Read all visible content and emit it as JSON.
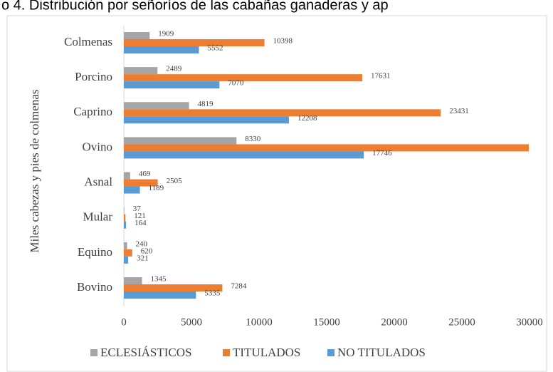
{
  "chart_data": {
    "type": "hbar",
    "title": "o 4. Distribución por señoríos de las cabañas ganaderas y ap",
    "y_label": "Miles cabezas y pies de colmenas",
    "categories": [
      "Bovino",
      "Equino",
      "Mular",
      "Asnal",
      "Ovino",
      "Caprino",
      "Porcino",
      "Colmenas"
    ],
    "series": [
      {
        "name": "ECLESIÁSTICOS",
        "color": "#a5a5a5",
        "values": [
          1345,
          240,
          37,
          469,
          8330,
          4819,
          2489,
          1909
        ]
      },
      {
        "name": "TITULADOS",
        "color": "#ed7d31",
        "values": [
          7284,
          620,
          121,
          2505,
          29950,
          23431,
          17631,
          10398
        ]
      },
      {
        "name": "NO TITULADOS",
        "color": "#5b9bd5",
        "values": [
          5335,
          321,
          164,
          1189,
          17746,
          12208,
          7070,
          5552
        ]
      }
    ],
    "xlim": [
      0,
      30000
    ],
    "xticks": [
      0,
      5000,
      10000,
      15000,
      20000,
      25000,
      30000
    ],
    "legend": "bottom"
  }
}
